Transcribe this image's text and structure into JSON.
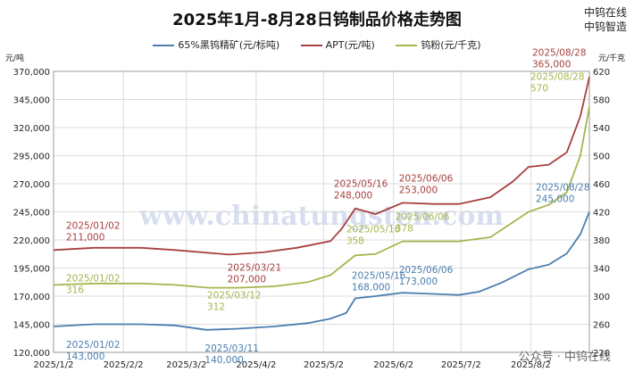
{
  "page": {
    "title": "2025年1月-8月28日钨制品价格走势图",
    "logo_line1": "中钨在线",
    "logo_line2": "中钨智造",
    "watermark_url": "www.chinatungsten.com",
    "footer_wm": "公众号 · 中钨在线"
  },
  "chart_data": {
    "type": "line",
    "title": "2025年1月-8月28日钨制品价格走势图",
    "x_tick_labels": [
      "2025/1/2",
      "2025/2/2",
      "2025/3/2",
      "2025/4/2",
      "2025/5/2",
      "2025/6/2",
      "2025/7/2",
      "2025/8/2"
    ],
    "x_ticks": [
      "2025-01-02",
      "2025-02-02",
      "2025-03-02",
      "2025-04-02",
      "2025-05-02",
      "2025-06-02",
      "2025-07-02",
      "2025-08-02"
    ],
    "x_range": [
      "2025-01-02",
      "2025-08-28"
    ],
    "y_left": {
      "unit": "元/吨",
      "range": [
        120000,
        370000
      ],
      "ticks": [
        120000,
        145000,
        170000,
        195000,
        220000,
        245000,
        270000,
        295000,
        320000,
        345000,
        370000
      ],
      "tick_labels": [
        "120,000",
        "145,000",
        "170,000",
        "195,000",
        "220,000",
        "245,000",
        "270,000",
        "295,000",
        "320,000",
        "345,000",
        "370,000"
      ]
    },
    "y_right": {
      "unit": "元/千克",
      "range": [
        220,
        620
      ],
      "ticks": [
        220,
        260,
        300,
        340,
        380,
        420,
        460,
        500,
        540,
        580,
        620
      ],
      "tick_labels": [
        "220",
        "260",
        "300",
        "340",
        "380",
        "420",
        "460",
        "500",
        "540",
        "580",
        "620"
      ]
    },
    "grid": true,
    "legend_position": "top",
    "series": [
      {
        "name": "65%黑钨精矿(元/标吨)",
        "color": "#4a7eb0",
        "axis": "left",
        "points": [
          [
            "2025-01-02",
            143000
          ],
          [
            "2025-01-20",
            145000
          ],
          [
            "2025-02-10",
            145000
          ],
          [
            "2025-02-25",
            144000
          ],
          [
            "2025-03-11",
            140000
          ],
          [
            "2025-03-25",
            141000
          ],
          [
            "2025-04-10",
            143000
          ],
          [
            "2025-04-25",
            146000
          ],
          [
            "2025-05-05",
            150000
          ],
          [
            "2025-05-12",
            155000
          ],
          [
            "2025-05-16",
            168000
          ],
          [
            "2025-05-25",
            170000
          ],
          [
            "2025-06-06",
            173000
          ],
          [
            "2025-06-20",
            172000
          ],
          [
            "2025-07-01",
            171000
          ],
          [
            "2025-07-10",
            174000
          ],
          [
            "2025-07-20",
            182000
          ],
          [
            "2025-08-01",
            194000
          ],
          [
            "2025-08-10",
            198000
          ],
          [
            "2025-08-18",
            208000
          ],
          [
            "2025-08-24",
            225000
          ],
          [
            "2025-08-28",
            245000
          ]
        ]
      },
      {
        "name": "APT(元/吨)",
        "color": "#a84040",
        "axis": "left",
        "points": [
          [
            "2025-01-02",
            211000
          ],
          [
            "2025-01-20",
            213000
          ],
          [
            "2025-02-10",
            213000
          ],
          [
            "2025-02-25",
            211000
          ],
          [
            "2025-03-21",
            207000
          ],
          [
            "2025-04-05",
            209000
          ],
          [
            "2025-04-20",
            213000
          ],
          [
            "2025-05-05",
            219000
          ],
          [
            "2025-05-10",
            230000
          ],
          [
            "2025-05-16",
            248000
          ],
          [
            "2025-05-25",
            243000
          ],
          [
            "2025-06-06",
            253000
          ],
          [
            "2025-06-20",
            252000
          ],
          [
            "2025-07-01",
            252000
          ],
          [
            "2025-07-15",
            258000
          ],
          [
            "2025-07-25",
            272000
          ],
          [
            "2025-08-01",
            285000
          ],
          [
            "2025-08-10",
            287000
          ],
          [
            "2025-08-18",
            298000
          ],
          [
            "2025-08-24",
            330000
          ],
          [
            "2025-08-28",
            365000
          ]
        ]
      },
      {
        "name": "钨粉(元/千克)",
        "color": "#a4b64e",
        "axis": "right",
        "points": [
          [
            "2025-01-02",
            316
          ],
          [
            "2025-01-20",
            318
          ],
          [
            "2025-02-10",
            318
          ],
          [
            "2025-02-25",
            316
          ],
          [
            "2025-03-12",
            312
          ],
          [
            "2025-03-25",
            312
          ],
          [
            "2025-04-10",
            314
          ],
          [
            "2025-04-25",
            320
          ],
          [
            "2025-05-05",
            330
          ],
          [
            "2025-05-16",
            358
          ],
          [
            "2025-05-25",
            360
          ],
          [
            "2025-06-06",
            378
          ],
          [
            "2025-06-20",
            378
          ],
          [
            "2025-07-01",
            378
          ],
          [
            "2025-07-15",
            384
          ],
          [
            "2025-07-25",
            405
          ],
          [
            "2025-08-01",
            420
          ],
          [
            "2025-08-10",
            430
          ],
          [
            "2025-08-18",
            448
          ],
          [
            "2025-08-24",
            500
          ],
          [
            "2025-08-28",
            570
          ]
        ]
      }
    ],
    "annotations": [
      {
        "series": 0,
        "lines": [
          "2025/01/02",
          "143,000"
        ]
      },
      {
        "series": 0,
        "lines": [
          "2025/03/11",
          "140,000"
        ]
      },
      {
        "series": 0,
        "lines": [
          "2025/05/16",
          "168,000"
        ]
      },
      {
        "series": 0,
        "lines": [
          "2025/06/06",
          "173,000"
        ]
      },
      {
        "series": 0,
        "lines": [
          "2025/08/28",
          "245,000"
        ]
      },
      {
        "series": 1,
        "lines": [
          "2025/01/02",
          "211,000"
        ]
      },
      {
        "series": 1,
        "lines": [
          "2025/03/21",
          "207,000"
        ]
      },
      {
        "series": 1,
        "lines": [
          "2025/05/16",
          "248,000"
        ]
      },
      {
        "series": 1,
        "lines": [
          "2025/06/06",
          "253,000"
        ]
      },
      {
        "series": 1,
        "lines": [
          "2025/08/28",
          "365,000"
        ]
      },
      {
        "series": 2,
        "lines": [
          "2025/01/02",
          "316"
        ]
      },
      {
        "series": 2,
        "lines": [
          "2025/03/12",
          "312"
        ]
      },
      {
        "series": 2,
        "lines": [
          "2025/05/16",
          "358"
        ]
      },
      {
        "series": 2,
        "lines": [
          "2025/06/06",
          "378"
        ]
      },
      {
        "series": 2,
        "lines": [
          "2025/08/28",
          "570"
        ]
      }
    ]
  }
}
